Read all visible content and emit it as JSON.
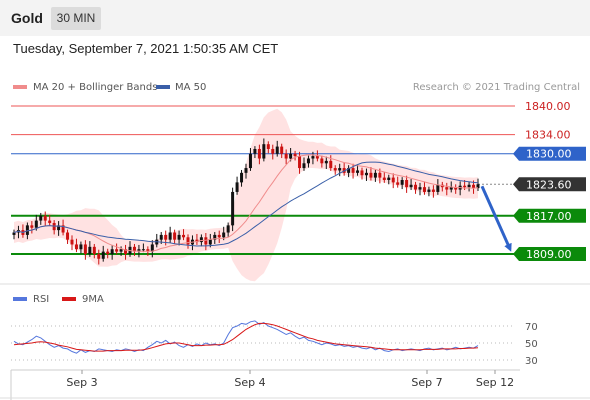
{
  "header": {
    "symbol": "Gold",
    "timeframe": "30 MIN",
    "timestamp": "Tuesday, September 7, 2021 1:50:35 AM CET"
  },
  "legend": {
    "ma20_bb": "MA 20 + Bollinger Bands",
    "ma50": "MA 50",
    "copyright": "Research © 2021 Trading Central"
  },
  "rsi_legend": {
    "rsi": "RSI",
    "ma9": "9MA"
  },
  "colors": {
    "bollinger_band": "#ffd8d8",
    "ma20": "#f08c8c",
    "ma50": "#3a5fa8",
    "candle_up": "#111111",
    "candle_down": "#cc1111",
    "resistance": "#ee5555",
    "pivot": "#2f63c9",
    "support": "#0b8a0b",
    "current": "#333333",
    "arrow": "#2f63c9",
    "rsi": "#5577dd",
    "rsi_ma": "#d81818"
  },
  "chart_data": {
    "type": "candlestick",
    "x_ticks": [
      "Sep 3",
      "Sep 4",
      "Sep 7",
      "Sep 12"
    ],
    "y_range": [
      1802,
      1842
    ],
    "price_levels": [
      {
        "name": "resistance-2",
        "value": 1840.0,
        "label": "1840.00",
        "style": "line"
      },
      {
        "name": "resistance-1",
        "value": 1834.0,
        "label": "1834.00",
        "style": "line"
      },
      {
        "name": "pivot",
        "value": 1830.0,
        "label": "1830.00",
        "style": "badge"
      },
      {
        "name": "current",
        "value": 1823.6,
        "label": "1823.60",
        "style": "badge"
      },
      {
        "name": "support-1",
        "value": 1817.0,
        "label": "1817.00",
        "style": "badge"
      },
      {
        "name": "support-2",
        "value": 1809.0,
        "label": "1809.00",
        "style": "badge"
      }
    ],
    "forecast_arrow": {
      "from": 1823.6,
      "to": 1809.0
    },
    "close_series": [
      1813.5,
      1814,
      1813,
      1815,
      1814.5,
      1816,
      1817,
      1816,
      1815.5,
      1814,
      1815,
      1813.5,
      1812,
      1811,
      1810,
      1811,
      1809,
      1810.5,
      1809,
      1808,
      1809.5,
      1809,
      1810,
      1809.5,
      1810,
      1809,
      1810.5,
      1809.5,
      1810,
      1810,
      1809.5,
      1811,
      1812,
      1813,
      1812,
      1813.5,
      1812,
      1813,
      1812.5,
      1811,
      1812,
      1811.5,
      1812.5,
      1811,
      1812,
      1813,
      1812.5,
      1813.5,
      1815,
      1822,
      1824,
      1826,
      1827,
      1830,
      1831,
      1829,
      1832,
      1831,
      1830,
      1831.5,
      1830,
      1829,
      1830,
      1829.5,
      1827,
      1828,
      1829,
      1829.5,
      1829,
      1828,
      1828.5,
      1827,
      1826.5,
      1827,
      1826,
      1827,
      1826,
      1826.5,
      1825.5,
      1826,
      1825,
      1826,
      1825,
      1824.5,
      1825,
      1824,
      1823.5,
      1824.5,
      1823,
      1823.5,
      1822.5,
      1823,
      1822,
      1822.5,
      1822,
      1823.5,
      1823,
      1822.5,
      1823,
      1822.5,
      1823.3,
      1823,
      1823.5,
      1822.8,
      1823.6
    ],
    "rsi_ticks": [
      70,
      50,
      30
    ],
    "rsi_range": [
      20,
      80
    ],
    "rsi_series": [
      52,
      49,
      48,
      51,
      54,
      58,
      56,
      52,
      48,
      45,
      47,
      44,
      43,
      40,
      38,
      42,
      39,
      41,
      40,
      43,
      42,
      41,
      40,
      42,
      41,
      43,
      42,
      40,
      42,
      41,
      45,
      48,
      52,
      50,
      53,
      49,
      51,
      47,
      45,
      48,
      46,
      49,
      47,
      50,
      48,
      49,
      47,
      50,
      60,
      68,
      70,
      73,
      72,
      75,
      76,
      72,
      74,
      70,
      68,
      66,
      63,
      60,
      62,
      58,
      55,
      57,
      53,
      52,
      50,
      48,
      50,
      49,
      47,
      48,
      46,
      47,
      45,
      46,
      44,
      43,
      45,
      42,
      44,
      41,
      40,
      42,
      43,
      41,
      42,
      43,
      42,
      41,
      43,
      44,
      42,
      43,
      44,
      42,
      43,
      45,
      43,
      44,
      45,
      44,
      47
    ],
    "rsi_ma_series": [
      48,
      48.5,
      49,
      49.5,
      50,
      51,
      51.5,
      51,
      50,
      49,
      47.5,
      46.5,
      45.5,
      44,
      42.5,
      42,
      41.5,
      41,
      40.5,
      40.5,
      40.5,
      41,
      41,
      41,
      41,
      41.5,
      41.5,
      41.5,
      41.5,
      42,
      43,
      44.5,
      46,
      47.5,
      49,
      49.5,
      50,
      50,
      49,
      48,
      47,
      47,
      47,
      47.5,
      47.5,
      48,
      48,
      48.5,
      51,
      54,
      58,
      62,
      66,
      69,
      71.5,
      73,
      73,
      72.5,
      71.5,
      70,
      68,
      66,
      64,
      62,
      60,
      58,
      56,
      55,
      53,
      52,
      51,
      50,
      49,
      48.5,
      48,
      47.5,
      47,
      46.5,
      46,
      45.5,
      45,
      44,
      43.5,
      43,
      42.5,
      42,
      42,
      42,
      42,
      42,
      42,
      42,
      42.5,
      42.5,
      42.5,
      42.5,
      43,
      43,
      43,
      43,
      43.5,
      43.5,
      44,
      44,
      44.5
    ]
  }
}
